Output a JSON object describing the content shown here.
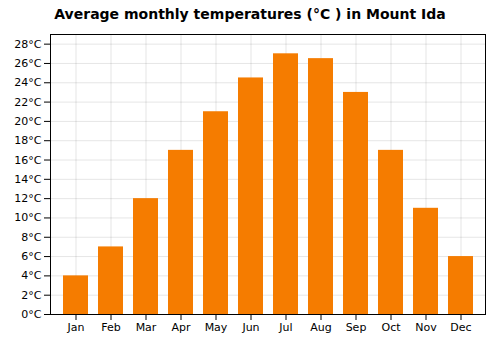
{
  "chart_data": {
    "type": "bar",
    "title": "Average monthly temperatures (°C ) in Mount Ida",
    "categories": [
      "Jan",
      "Feb",
      "Mar",
      "Apr",
      "May",
      "Jun",
      "Jul",
      "Aug",
      "Sep",
      "Oct",
      "Nov",
      "Dec"
    ],
    "values": [
      4,
      7,
      12,
      17,
      21,
      24.5,
      27,
      26.5,
      23,
      17,
      11,
      6
    ],
    "color": "#F57C00",
    "ylim": [
      0,
      29
    ],
    "yticks": [
      {
        "value": 0,
        "label": "0°C"
      },
      {
        "value": 2,
        "label": "2°C"
      },
      {
        "value": 4,
        "label": "4°C"
      },
      {
        "value": 6,
        "label": "6°C"
      },
      {
        "value": 8,
        "label": "8°C"
      },
      {
        "value": 10,
        "label": "10°C"
      },
      {
        "value": 12,
        "label": "12°C"
      },
      {
        "value": 14,
        "label": "14°C"
      },
      {
        "value": 16,
        "label": "16°C"
      },
      {
        "value": 18,
        "label": "18°C"
      },
      {
        "value": 20,
        "label": "20°C"
      },
      {
        "value": 22,
        "label": "22°C"
      },
      {
        "value": 24,
        "label": "24°C"
      },
      {
        "value": 26,
        "label": "26°C"
      },
      {
        "value": 28,
        "label": "28°C"
      }
    ],
    "grid": true
  }
}
